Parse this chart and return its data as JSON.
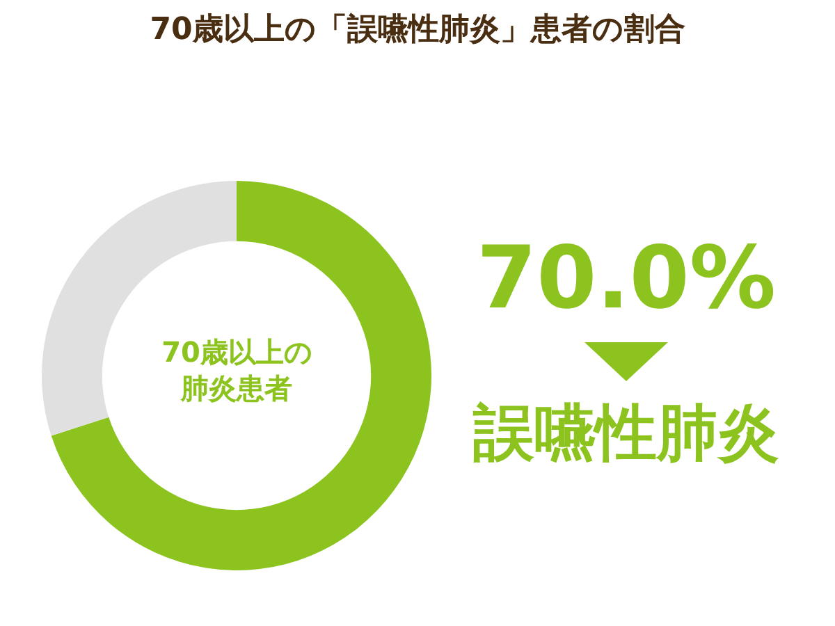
{
  "chart_data": {
    "type": "donut",
    "title": "70歳以上の「誤嚥性肺炎」患者の割合",
    "categories": [
      "誤嚥性肺炎",
      null
    ],
    "values": [
      70,
      30
    ],
    "colors": [
      "#8cc31e",
      "#e0e0e0"
    ],
    "value_labels": [
      "70.0%",
      null
    ],
    "annotations": [
      "70歳以上の",
      "肺炎患者"
    ]
  }
}
